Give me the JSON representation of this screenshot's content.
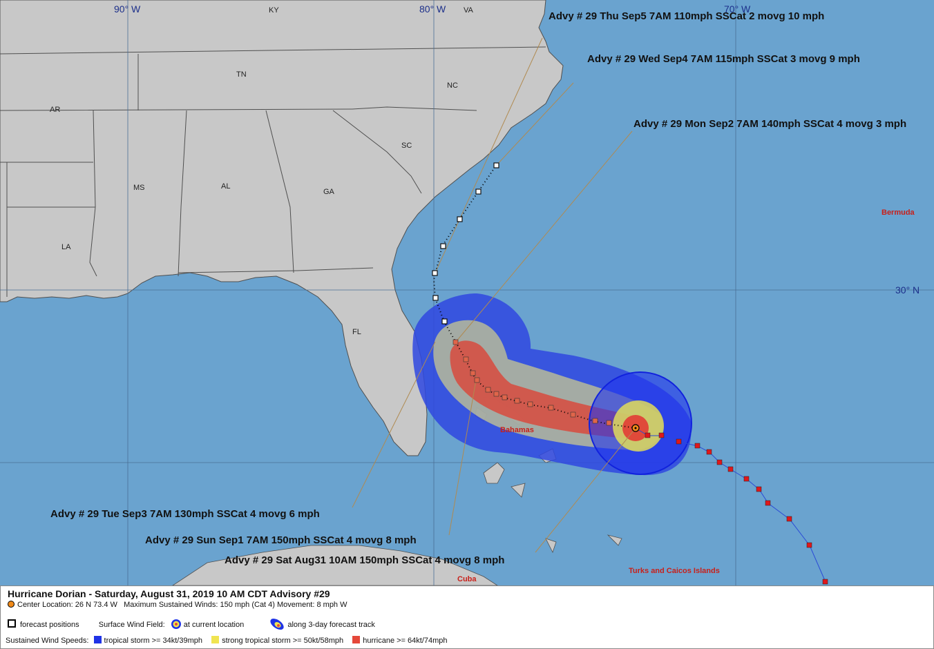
{
  "map": {
    "colors": {
      "ocean": "#6aa3cf",
      "land": "#c8c8c8",
      "border": "#4f4f4f",
      "grid": "#4a6f95",
      "ts": "#1f33e6",
      "sts": "#f0e451",
      "hurr": "#e5483a"
    },
    "grid_labels": {
      "lon90": "90° W",
      "lon80": "80° W",
      "lon70": "70° W",
      "lat30": "30° N"
    },
    "states": {
      "ky": "KY",
      "va": "VA",
      "tn": "TN",
      "nc": "NC",
      "ar": "AR",
      "sc": "SC",
      "ms": "MS",
      "al": "AL",
      "ga": "GA",
      "la": "LA",
      "fl": "FL"
    },
    "places": {
      "bermuda": "Bermuda",
      "bahamas": "Bahamas",
      "turks": "Turks and Caicos Islands",
      "cuba": "Cuba"
    },
    "advisories": {
      "thu": "Advy # 29 Thu Sep5 7AM  110mph SSCat 2 movg 10 mph",
      "wed": "Advy # 29 Wed Sep4 7AM  115mph SSCat 3 movg 9 mph",
      "mon": "Advy # 29 Mon Sep2 7AM  140mph SSCat 4 movg 3 mph",
      "tue": "Advy # 29 Tue Sep3 7AM  130mph SSCat 4 movg 6 mph",
      "sun": "Advy # 29 Sun Sep1 7AM  150mph SSCat 4 movg 8 mph",
      "sat": "Advy # 29 Sat Aug31 10AM  150mph SSCat 4 movg 8 mph"
    }
  },
  "legend": {
    "title": "Hurricane Dorian  -  Saturday, August 31, 2019  10 AM CDT   Advisory #29",
    "center": "Center Location: 26 N   73.4 W",
    "winds": "Maximum Sustained Winds: 150 mph (Cat 4) Movement: 8 mph W",
    "forecast_positions": "forecast positions",
    "surface_wind_field": "Surface Wind Field:",
    "at_current": "at current location",
    "along_track": "along 3-day forecast track",
    "sustained": "Sustained Wind Speeds:",
    "ts": "tropical storm >= 34kt/39mph",
    "sts": "strong tropical storm >= 50kt/58mph",
    "hurr": "hurricane >= 64kt/74mph"
  }
}
